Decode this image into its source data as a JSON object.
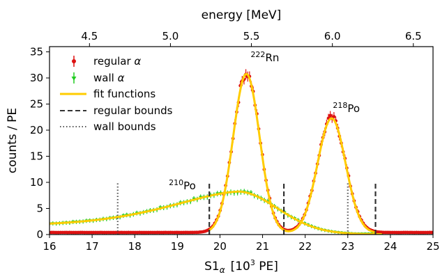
{
  "chart_data": {
    "type": "scatter",
    "xlabel": "S1",
    "xlabel_sub": "α",
    "xlabel_unit_pre": "[10",
    "xlabel_unit_sup": "3",
    "xlabel_unit_post": " PE]",
    "ylabel": "counts / PE",
    "top_xlabel": "energy [MeV]",
    "xlim": [
      16,
      25
    ],
    "ylim": [
      0,
      36
    ],
    "x_ticks": [
      "16",
      "17",
      "18",
      "19",
      "20",
      "21",
      "22",
      "23",
      "24",
      "25"
    ],
    "y_ticks": [
      "0",
      "5",
      "10",
      "15",
      "20",
      "25",
      "30",
      "35"
    ],
    "top_ticks": [
      "4.5",
      "5.0",
      "5.5",
      "6.0",
      "6.5"
    ],
    "top_tick_energy": [
      4.5,
      5.0,
      5.5,
      6.0,
      6.5
    ],
    "energy_to_s1": {
      "e_ref": 5.49,
      "s1_ref": 20.7,
      "slope": 3.8
    },
    "legend": {
      "placement": "upper-left",
      "entries": [
        {
          "label": "regular",
          "italic": "α",
          "style": "errorbar",
          "color": "#dd1111"
        },
        {
          "label": "wall",
          "italic": "α",
          "style": "errorbar",
          "color": "#22cc22"
        },
        {
          "label": "fit functions",
          "italic": "",
          "style": "line",
          "color": "#ffcc00"
        },
        {
          "label": "regular bounds",
          "italic": "",
          "style": "dashed",
          "color": "#333333"
        },
        {
          "label": "wall bounds",
          "italic": "",
          "style": "dotted",
          "color": "#555555"
        }
      ]
    },
    "annotations": [
      {
        "sup": "222",
        "text": "Rn",
        "x": 20.72,
        "y": 33.2
      },
      {
        "sup": "218",
        "text": "Po",
        "x": 22.65,
        "y": 23.5
      },
      {
        "sup": "210",
        "text": "Po",
        "x": 18.8,
        "y": 8.7
      }
    ],
    "regular_bounds": [
      19.75,
      21.5,
      23.65
    ],
    "wall_bounds": [
      17.6,
      23.0
    ],
    "bound_heights": {
      "regular": 10,
      "wall": 10
    },
    "series": [
      {
        "name": "regular α",
        "color": "#dd1111",
        "peaks": [
          {
            "mu": 20.62,
            "sigma": 0.31,
            "amp": 30.5
          },
          {
            "mu": 22.62,
            "sigma": 0.33,
            "amp": 22.0
          }
        ],
        "baseline": 0.4,
        "x_range": [
          16,
          25
        ],
        "n_points": 210
      },
      {
        "name": "wall α",
        "color": "#22cc22",
        "shape": "skewed-broad",
        "peak_x": 20.4,
        "peak_y": 8.2,
        "left_value_at_16": 1.7,
        "right_tail_to": 23.8,
        "x_range": [
          16,
          23.8
        ],
        "n_points": 100
      }
    ],
    "colors": {
      "regular": "#dd1111",
      "wall": "#22cc22",
      "fit": "#ffcc00",
      "bounds": "#333333"
    },
    "grid": false
  }
}
